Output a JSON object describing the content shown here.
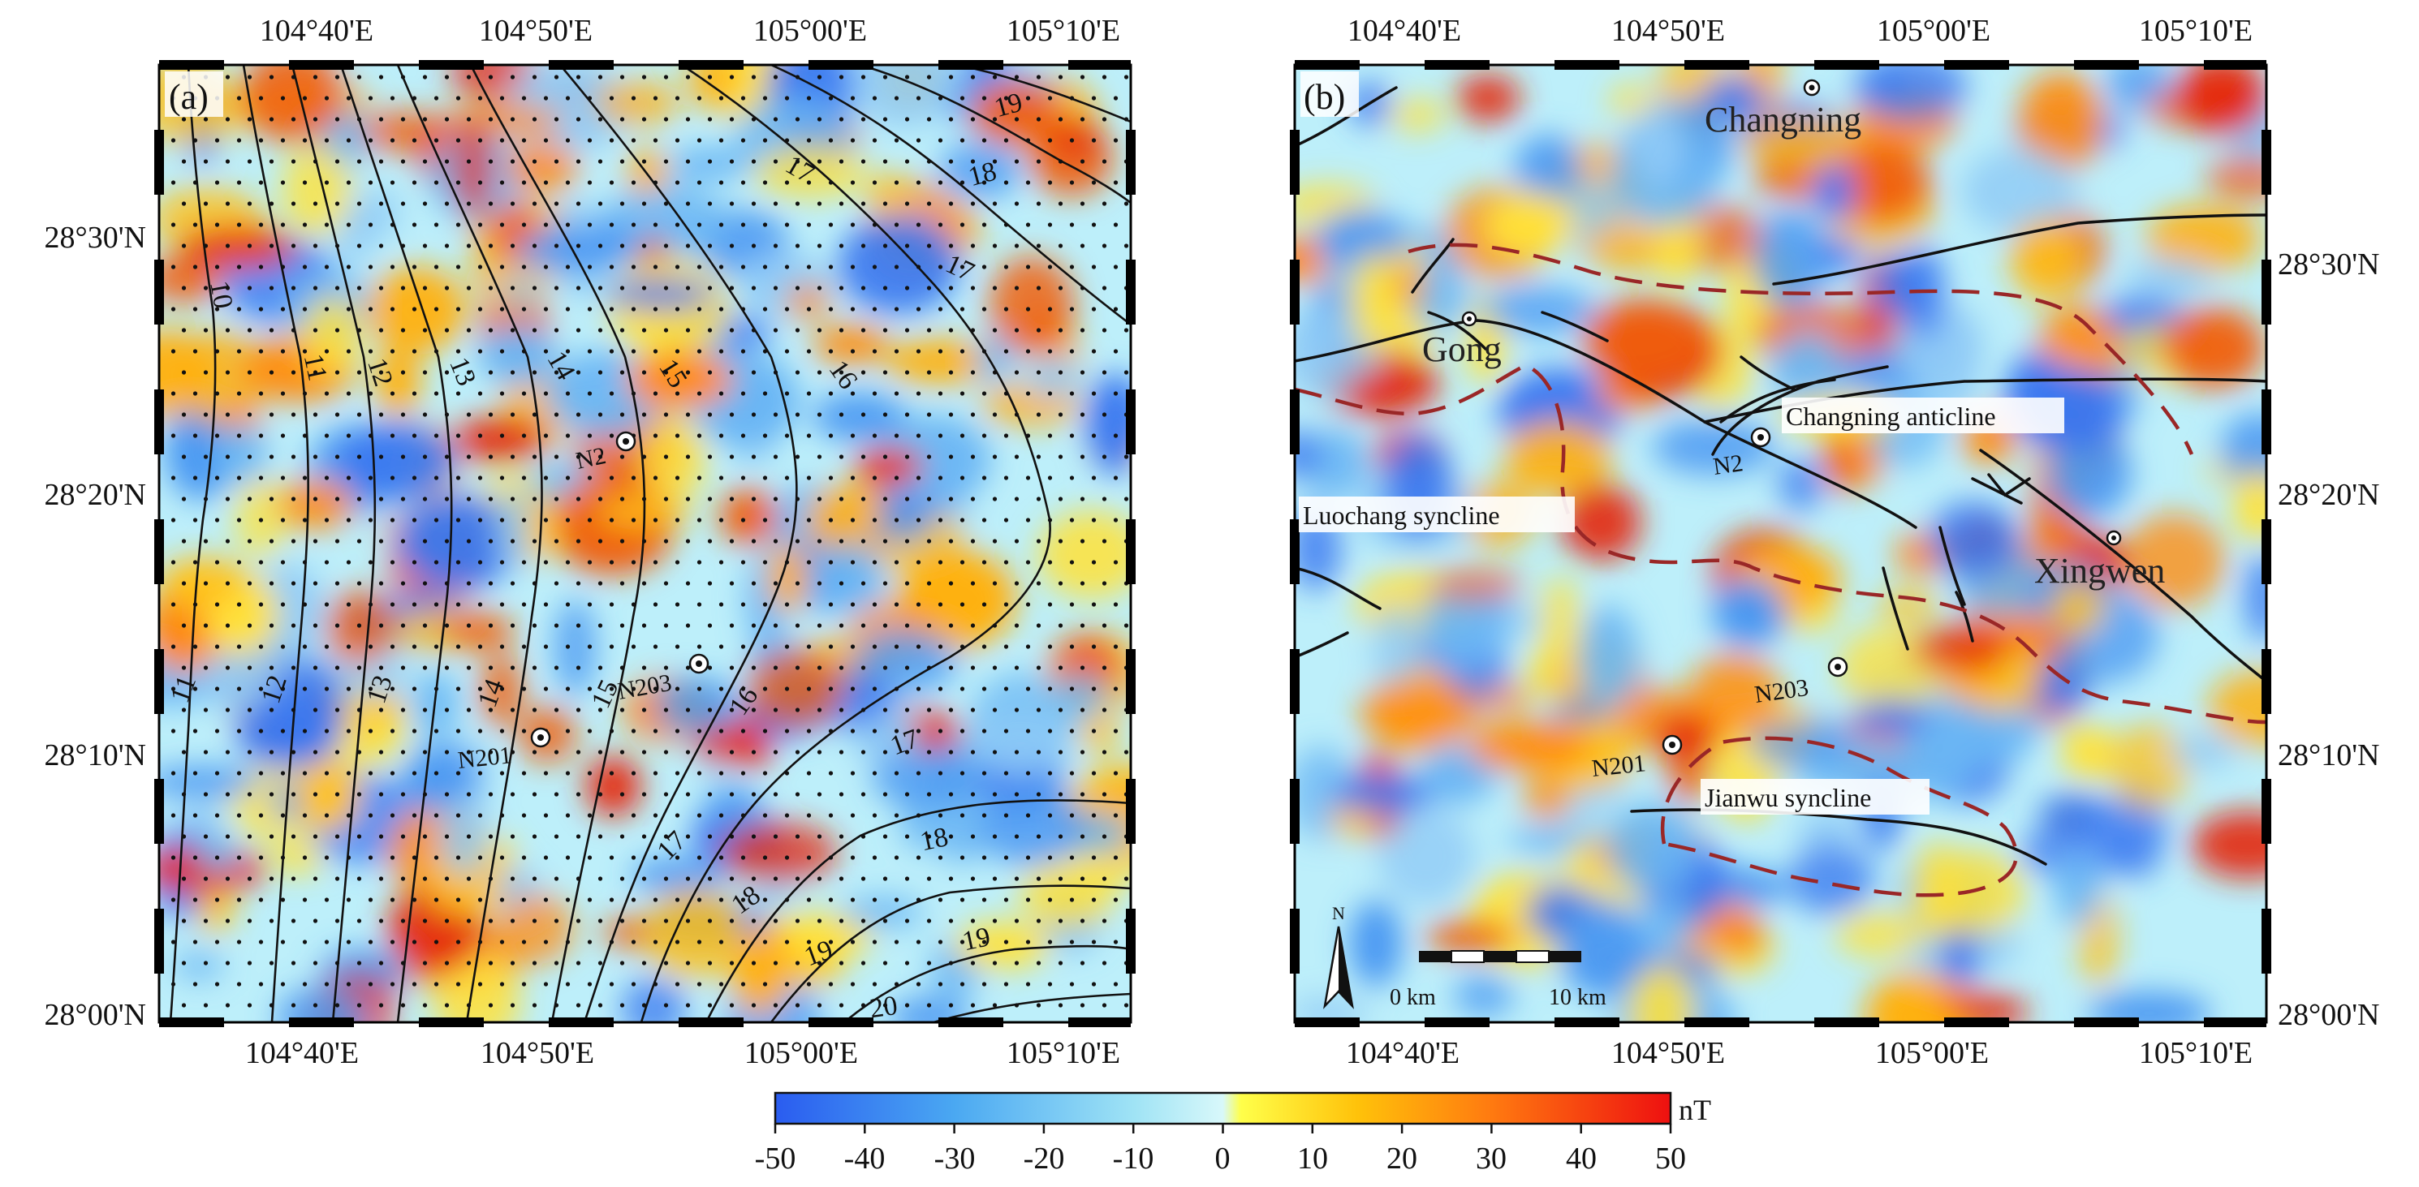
{
  "panels": [
    {
      "id": "a",
      "label": "(a)",
      "top_ticks": [
        "104°40'E",
        "104°50'E",
        "105°00'E",
        "105°10'E"
      ],
      "bottom_ticks": [
        "104°40'E",
        "104°50'E",
        "105°00'E",
        "105°10'E"
      ],
      "left_ticks": [
        "28°30'N",
        "28°20'N",
        "28°10'N",
        "28°00'N"
      ],
      "contour_labels": [
        "10",
        "11",
        "12",
        "13",
        "14",
        "15",
        "16",
        "17",
        "18",
        "19",
        "11",
        "12",
        "13",
        "14",
        "15",
        "16",
        "17",
        "17",
        "18",
        "18",
        "19",
        "19",
        "20",
        "17",
        "18"
      ],
      "wells": [
        "N2",
        "N203",
        "N201"
      ]
    },
    {
      "id": "b",
      "label": "(b)",
      "top_ticks": [
        "104°40'E",
        "104°50'E",
        "105°00'E",
        "105°10'E"
      ],
      "bottom_ticks": [
        "104°40'E",
        "104°50'E",
        "105°00'E",
        "105°10'E"
      ],
      "right_ticks": [
        "28°30'N",
        "28°20'N",
        "28°10'N",
        "28°00'N"
      ],
      "towns": [
        "Changning",
        "Gong",
        "Xingwen"
      ],
      "structures": [
        "Changning anticline",
        "Luochang syncline",
        "Jianwu syncline"
      ],
      "wells": [
        "N2",
        "N203",
        "N201"
      ],
      "scale_bar": {
        "start": "0 km",
        "end": "10 km"
      },
      "north_label": "N"
    }
  ],
  "colorbar": {
    "unit": "nT",
    "ticks": [
      "-50",
      "-40",
      "-30",
      "-20",
      "-10",
      "0",
      "10",
      "20",
      "30",
      "40",
      "50"
    ],
    "min": -50,
    "max": 50,
    "stops": [
      "#2a5cf0",
      "#4aa8f2",
      "#9fe3f5",
      "#d8f8fa",
      "#ffff4a",
      "#ffc20a",
      "#ff7a10",
      "#ee1010"
    ]
  },
  "colors": {
    "frame": "#000000",
    "fault_line": "#111111",
    "syncline_dash": "#9a2727",
    "base_fill": "#bdeffa"
  }
}
